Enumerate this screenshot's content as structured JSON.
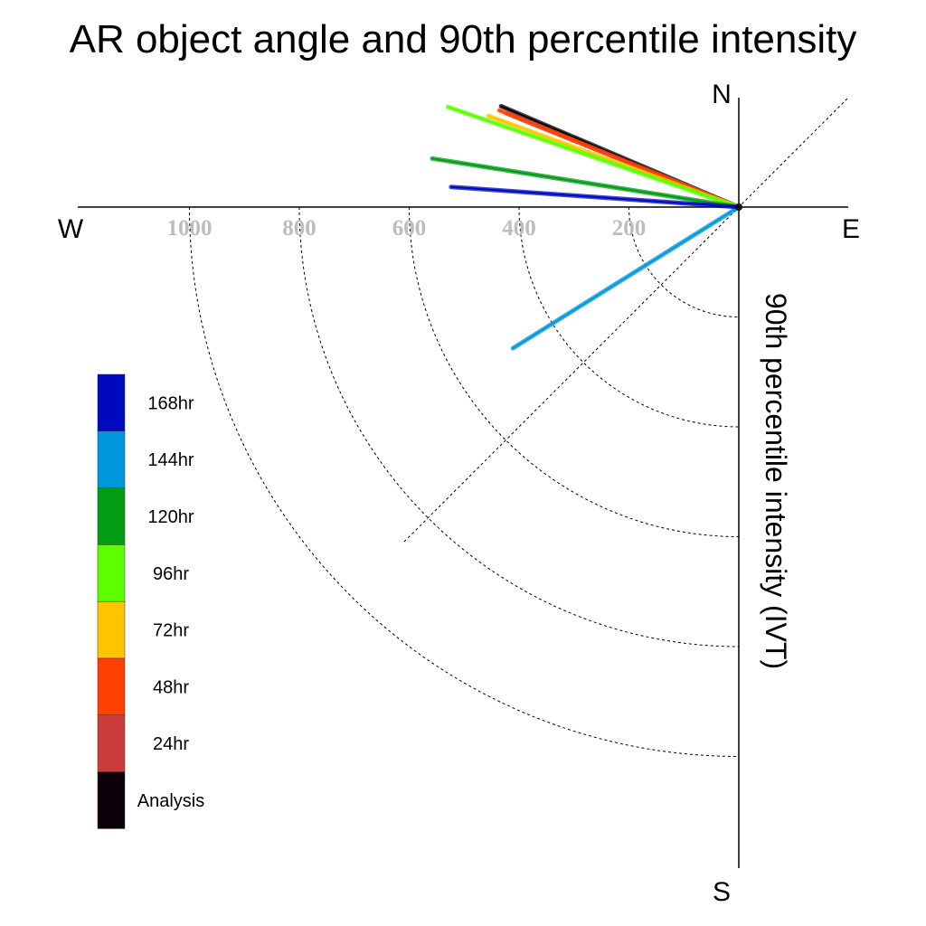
{
  "chart_data": {
    "type": "polar-line",
    "title": "AR object angle and 90th percentile intensity",
    "radial_label": "90th percentile intensity (IVT)",
    "directions": {
      "north": "N",
      "south": "S",
      "east": "E",
      "west": "W"
    },
    "radial_ticks": [
      200,
      400,
      600,
      800,
      1000
    ],
    "radial_max": 1200,
    "series": [
      {
        "name": "Analysis",
        "color": "#0c0008",
        "angle_deg": 157,
        "intensity": 470
      },
      {
        "name": "24hr",
        "color": "#cc3c3c",
        "angle_deg": 158,
        "intensity": 455
      },
      {
        "name": "48hr",
        "color": "#ff4000",
        "angle_deg": 158,
        "intensity": 470
      },
      {
        "name": "72hr",
        "color": "#ffc400",
        "angle_deg": 160,
        "intensity": 485
      },
      {
        "name": "96hr",
        "color": "#5cff00",
        "angle_deg": 161,
        "intensity": 560
      },
      {
        "name": "120hr",
        "color": "#009c14",
        "angle_deg": 171,
        "intensity": 565
      },
      {
        "name": "144hr",
        "color": "#0098dc",
        "angle_deg": 212,
        "intensity": 485
      },
      {
        "name": "168hr",
        "color": "#0008c0",
        "angle_deg": 176,
        "intensity": 525
      }
    ],
    "legend_order": [
      "168hr",
      "144hr",
      "120hr",
      "96hr",
      "72hr",
      "48hr",
      "24hr",
      "Analysis"
    ],
    "grid": true
  }
}
